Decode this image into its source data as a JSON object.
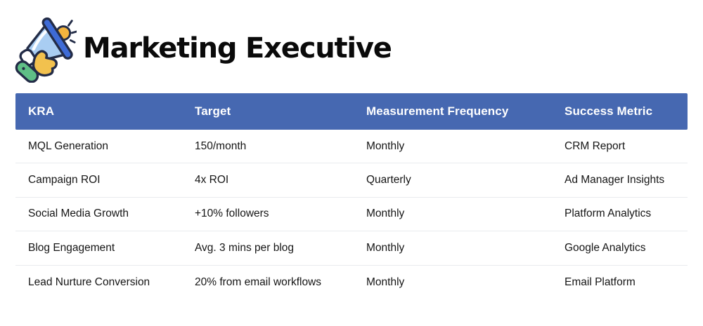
{
  "header": {
    "title": "Marketing Executive",
    "icon": "megaphone-thumbs-up"
  },
  "table": {
    "columns": [
      "KRA",
      "Target",
      "Measurement Frequency",
      "Success Metric"
    ],
    "rows": [
      [
        "MQL Generation",
        "150/month",
        "Monthly",
        "CRM Report"
      ],
      [
        "Campaign ROI",
        "4x ROI",
        "Quarterly",
        "Ad Manager Insights"
      ],
      [
        "Social Media Growth",
        "+10% followers",
        "Monthly",
        "Platform Analytics"
      ],
      [
        "Blog Engagement",
        "Avg. 3 mins per blog",
        "Monthly",
        "Google Analytics"
      ],
      [
        "Lead Nurture Conversion",
        "20% from email workflows",
        "Monthly",
        "Email Platform"
      ]
    ]
  },
  "colors": {
    "header_bg": "#4668B1",
    "header_text": "#FFFFFF",
    "body_text": "#151515",
    "row_divider": "#E9EBEE",
    "title_color": "#0A0A0A",
    "page_bg": "#FFFFFF",
    "icon_light_blue": "#A9CDF2",
    "icon_royal_blue": "#3E6BD6",
    "icon_yellow": "#F2BC4B",
    "icon_orange_ball": "#F2B43F",
    "icon_green": "#5FBF86",
    "icon_outline": "#232C47"
  }
}
